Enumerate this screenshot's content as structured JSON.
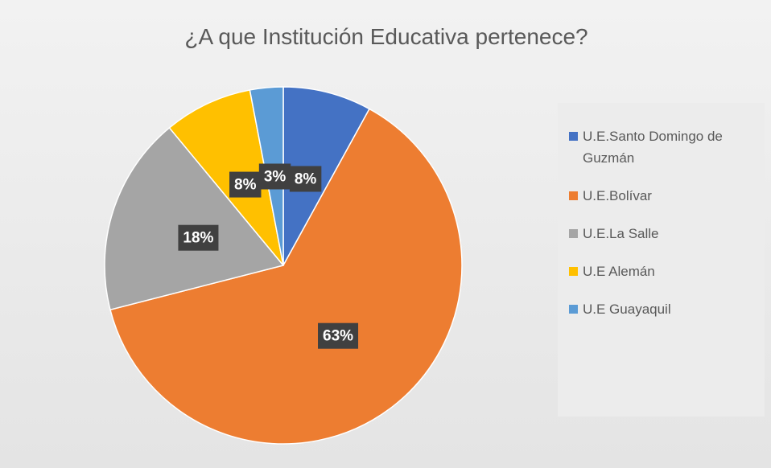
{
  "chart_data": {
    "type": "pie",
    "title": "¿A que Institución Educativa pertenece?",
    "categories": [
      "U.E.Santo Domingo de Guzmán",
      "U.E.Bolívar",
      "U.E.La Salle",
      "U.E Alemán",
      "U.E Guayaquil"
    ],
    "values": [
      8,
      63,
      18,
      8,
      3
    ],
    "value_labels": [
      "8%",
      "63%",
      "18%",
      "8%",
      "3%"
    ],
    "colors": [
      "#4472c4",
      "#ed7d31",
      "#a5a5a5",
      "#ffc000",
      "#5b9bd5"
    ],
    "legend": "right"
  }
}
